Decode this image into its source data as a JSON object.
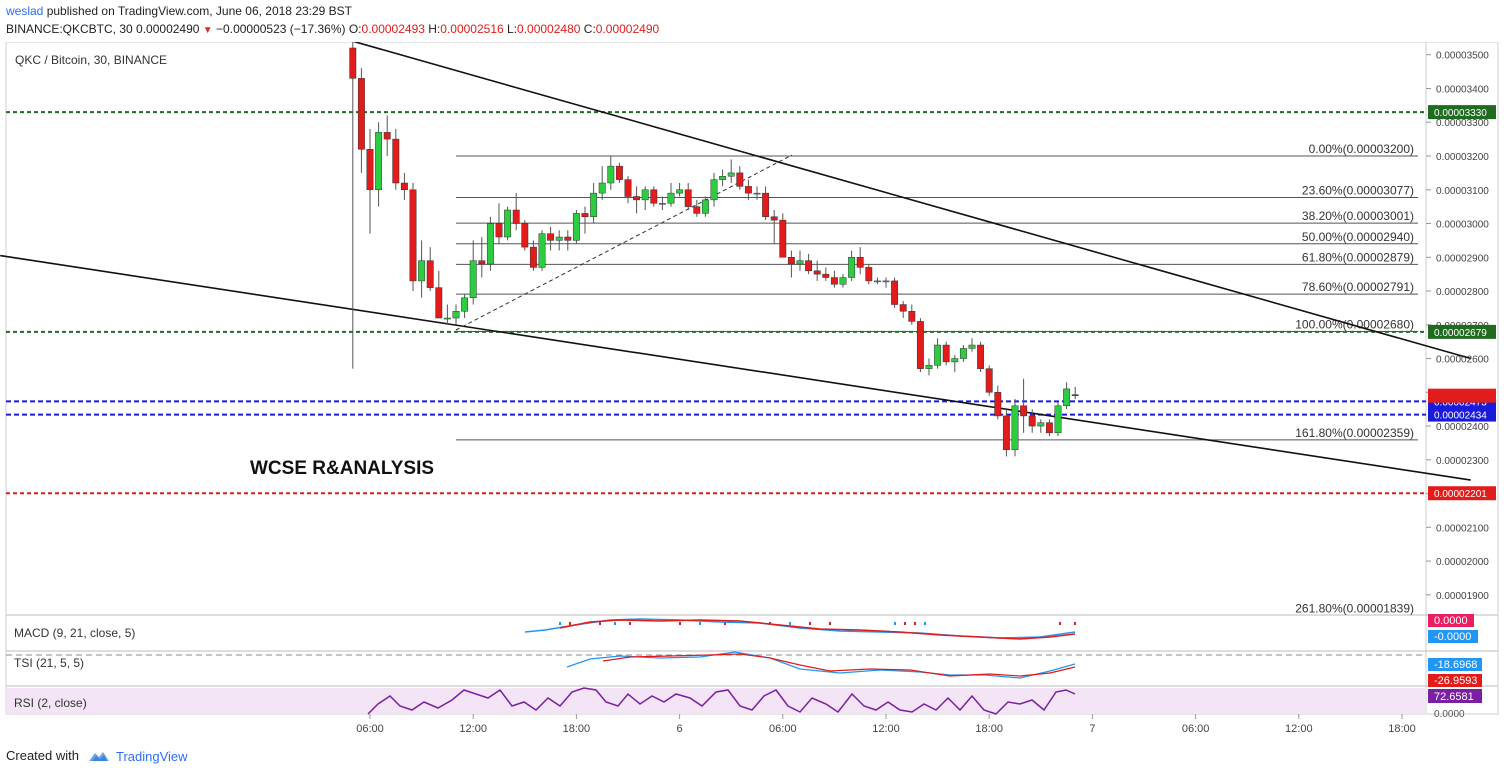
{
  "header": {
    "user": "weslad",
    "published_text": " published on TradingView.com, June 06, 2018 23:29 BST",
    "symbol": "BINANCE:QKCBTC, 30",
    "last": "0.00002490",
    "arrow": "▼",
    "change": "−0.00000523 (−17.36%)",
    "o_label": "O:",
    "o_value": "0.00002493",
    "h_label": "H:",
    "h_value": "0.00002516",
    "l_label": "L:",
    "l_value": "0.00002480",
    "c_label": "C:",
    "c_value": "0.00002490"
  },
  "chart_title": "QKC / Bitcoin, 30, BINANCE",
  "watermark_text": "WCSE R&ANALYSIS",
  "footer": {
    "created_with": "Created with",
    "brand": "TradingView"
  },
  "colors": {
    "up": "#2ecc40",
    "down": "#e21b1b",
    "wick": "#555555",
    "support_green": "#1f6b1f",
    "blue_dashed": "#1a1adb",
    "red_dashed": "#e21b1b",
    "macd": "#2196f3",
    "signal": "#e21b1b",
    "rsi": "#7b1fa2",
    "rsi_band": "#f3e5f5"
  },
  "chart_data": {
    "type": "candlestick",
    "title": "QKC / Bitcoin, 30, BINANCE",
    "y_range": [
      1.83e-05,
      3.55e-05
    ],
    "y_ticks": [
      "0.00001900",
      "0.00002000",
      "0.00002100",
      "0.00002200",
      "0.00002300",
      "0.00002400",
      "0.00002500",
      "0.00002600",
      "0.00002700",
      "0.00002800",
      "0.00002900",
      "0.00003000",
      "0.00003100",
      "0.00003200",
      "0.00003300",
      "0.00003400",
      "0.00003500"
    ],
    "x_ticks": [
      {
        "label": "06:00",
        "t": 0
      },
      {
        "label": "12:00",
        "t": 12
      },
      {
        "label": "18:00",
        "t": 24
      },
      {
        "label": "6",
        "t": 36
      },
      {
        "label": "06:00",
        "t": 48
      },
      {
        "label": "12:00",
        "t": 60
      },
      {
        "label": "18:00",
        "t": 72
      },
      {
        "label": "7",
        "t": 84
      },
      {
        "label": "06:00",
        "t": 96
      },
      {
        "label": "12:00",
        "t": 108
      },
      {
        "label": "18:00",
        "t": 120
      }
    ],
    "candles": [
      {
        "t": -2,
        "o": 3520,
        "h": 3560,
        "l": 2570,
        "c": 3430
      },
      {
        "t": -1,
        "o": 3430,
        "h": 3460,
        "l": 3150,
        "c": 3220
      },
      {
        "t": 0,
        "o": 3220,
        "h": 3280,
        "l": 2970,
        "c": 3100
      },
      {
        "t": 1,
        "o": 3100,
        "h": 3300,
        "l": 3050,
        "c": 3270
      },
      {
        "t": 2,
        "o": 3270,
        "h": 3320,
        "l": 3200,
        "c": 3250
      },
      {
        "t": 3,
        "o": 3250,
        "h": 3280,
        "l": 3100,
        "c": 3120
      },
      {
        "t": 4,
        "o": 3120,
        "h": 3150,
        "l": 3070,
        "c": 3100
      },
      {
        "t": 5,
        "o": 3100,
        "h": 3120,
        "l": 2800,
        "c": 2830
      },
      {
        "t": 6,
        "o": 2830,
        "h": 2950,
        "l": 2780,
        "c": 2890
      },
      {
        "t": 7,
        "o": 2890,
        "h": 2930,
        "l": 2800,
        "c": 2810
      },
      {
        "t": 8,
        "o": 2810,
        "h": 2860,
        "l": 2720,
        "c": 2720
      },
      {
        "t": 9,
        "o": 2720,
        "h": 2760,
        "l": 2700,
        "c": 2720
      },
      {
        "t": 10,
        "o": 2720,
        "h": 2760,
        "l": 2700,
        "c": 2740
      },
      {
        "t": 11,
        "o": 2740,
        "h": 2790,
        "l": 2720,
        "c": 2780
      },
      {
        "t": 12,
        "o": 2780,
        "h": 2950,
        "l": 2760,
        "c": 2890
      },
      {
        "t": 13,
        "o": 2890,
        "h": 2960,
        "l": 2840,
        "c": 2880
      },
      {
        "t": 14,
        "o": 2880,
        "h": 3020,
        "l": 2860,
        "c": 3000
      },
      {
        "t": 15,
        "o": 3000,
        "h": 3060,
        "l": 2940,
        "c": 2960
      },
      {
        "t": 16,
        "o": 2960,
        "h": 3050,
        "l": 2950,
        "c": 3040
      },
      {
        "t": 17,
        "o": 3040,
        "h": 3090,
        "l": 2980,
        "c": 3000
      },
      {
        "t": 18,
        "o": 3000,
        "h": 3010,
        "l": 2920,
        "c": 2930
      },
      {
        "t": 19,
        "o": 2930,
        "h": 2950,
        "l": 2860,
        "c": 2870
      },
      {
        "t": 20,
        "o": 2870,
        "h": 2980,
        "l": 2860,
        "c": 2970
      },
      {
        "t": 21,
        "o": 2970,
        "h": 2990,
        "l": 2920,
        "c": 2950
      },
      {
        "t": 22,
        "o": 2950,
        "h": 2980,
        "l": 2920,
        "c": 2960
      },
      {
        "t": 23,
        "o": 2960,
        "h": 2980,
        "l": 2920,
        "c": 2950
      },
      {
        "t": 24,
        "o": 2950,
        "h": 3040,
        "l": 2940,
        "c": 3030
      },
      {
        "t": 25,
        "o": 3030,
        "h": 3050,
        "l": 2970,
        "c": 3020
      },
      {
        "t": 26,
        "o": 3020,
        "h": 3120,
        "l": 3000,
        "c": 3090
      },
      {
        "t": 27,
        "o": 3090,
        "h": 3170,
        "l": 3070,
        "c": 3120
      },
      {
        "t": 28,
        "o": 3120,
        "h": 3200,
        "l": 3100,
        "c": 3170
      },
      {
        "t": 29,
        "o": 3170,
        "h": 3180,
        "l": 3120,
        "c": 3130
      },
      {
        "t": 30,
        "o": 3130,
        "h": 3140,
        "l": 3060,
        "c": 3080
      },
      {
        "t": 31,
        "o": 3080,
        "h": 3110,
        "l": 3030,
        "c": 3070
      },
      {
        "t": 32,
        "o": 3070,
        "h": 3110,
        "l": 3040,
        "c": 3100
      },
      {
        "t": 33,
        "o": 3100,
        "h": 3110,
        "l": 3050,
        "c": 3060
      },
      {
        "t": 34,
        "o": 3060,
        "h": 3080,
        "l": 3040,
        "c": 3060
      },
      {
        "t": 35,
        "o": 3060,
        "h": 3120,
        "l": 3050,
        "c": 3090
      },
      {
        "t": 36,
        "o": 3090,
        "h": 3120,
        "l": 3080,
        "c": 3100
      },
      {
        "t": 37,
        "o": 3100,
        "h": 3120,
        "l": 3040,
        "c": 3050
      },
      {
        "t": 38,
        "o": 3050,
        "h": 3070,
        "l": 3020,
        "c": 3030
      },
      {
        "t": 39,
        "o": 3030,
        "h": 3080,
        "l": 3020,
        "c": 3070
      },
      {
        "t": 40,
        "o": 3070,
        "h": 3150,
        "l": 3050,
        "c": 3130
      },
      {
        "t": 41,
        "o": 3130,
        "h": 3160,
        "l": 3110,
        "c": 3140
      },
      {
        "t": 42,
        "o": 3140,
        "h": 3190,
        "l": 3120,
        "c": 3150
      },
      {
        "t": 43,
        "o": 3150,
        "h": 3170,
        "l": 3100,
        "c": 3110
      },
      {
        "t": 44,
        "o": 3110,
        "h": 3130,
        "l": 3070,
        "c": 3090
      },
      {
        "t": 45,
        "o": 3090,
        "h": 3110,
        "l": 3070,
        "c": 3090
      },
      {
        "t": 46,
        "o": 3090,
        "h": 3110,
        "l": 3010,
        "c": 3020
      },
      {
        "t": 47,
        "o": 3020,
        "h": 3040,
        "l": 2940,
        "c": 3010
      },
      {
        "t": 48,
        "o": 3010,
        "h": 3030,
        "l": 2900,
        "c": 2900
      },
      {
        "t": 49,
        "o": 2900,
        "h": 2920,
        "l": 2840,
        "c": 2880
      },
      {
        "t": 50,
        "o": 2880,
        "h": 2920,
        "l": 2860,
        "c": 2890
      },
      {
        "t": 51,
        "o": 2890,
        "h": 2910,
        "l": 2850,
        "c": 2860
      },
      {
        "t": 52,
        "o": 2860,
        "h": 2890,
        "l": 2830,
        "c": 2850
      },
      {
        "t": 53,
        "o": 2850,
        "h": 2870,
        "l": 2830,
        "c": 2840
      },
      {
        "t": 54,
        "o": 2840,
        "h": 2860,
        "l": 2810,
        "c": 2820
      },
      {
        "t": 55,
        "o": 2820,
        "h": 2850,
        "l": 2810,
        "c": 2840
      },
      {
        "t": 56,
        "o": 2840,
        "h": 2920,
        "l": 2830,
        "c": 2900
      },
      {
        "t": 57,
        "o": 2900,
        "h": 2930,
        "l": 2850,
        "c": 2870
      },
      {
        "t": 58,
        "o": 2870,
        "h": 2880,
        "l": 2820,
        "c": 2830
      },
      {
        "t": 59,
        "o": 2830,
        "h": 2840,
        "l": 2820,
        "c": 2830
      },
      {
        "t": 60,
        "o": 2830,
        "h": 2840,
        "l": 2810,
        "c": 2830
      },
      {
        "t": 61,
        "o": 2830,
        "h": 2840,
        "l": 2750,
        "c": 2760
      },
      {
        "t": 62,
        "o": 2760,
        "h": 2770,
        "l": 2720,
        "c": 2740
      },
      {
        "t": 63,
        "o": 2740,
        "h": 2760,
        "l": 2700,
        "c": 2710
      },
      {
        "t": 64,
        "o": 2710,
        "h": 2720,
        "l": 2560,
        "c": 2570
      },
      {
        "t": 65,
        "o": 2570,
        "h": 2600,
        "l": 2550,
        "c": 2580
      },
      {
        "t": 66,
        "o": 2580,
        "h": 2660,
        "l": 2570,
        "c": 2640
      },
      {
        "t": 67,
        "o": 2640,
        "h": 2650,
        "l": 2580,
        "c": 2590
      },
      {
        "t": 68,
        "o": 2590,
        "h": 2610,
        "l": 2560,
        "c": 2600
      },
      {
        "t": 69,
        "o": 2600,
        "h": 2640,
        "l": 2590,
        "c": 2630
      },
      {
        "t": 70,
        "o": 2630,
        "h": 2660,
        "l": 2620,
        "c": 2640
      },
      {
        "t": 71,
        "o": 2640,
        "h": 2650,
        "l": 2560,
        "c": 2570
      },
      {
        "t": 72,
        "o": 2570,
        "h": 2580,
        "l": 2490,
        "c": 2500
      },
      {
        "t": 73,
        "o": 2500,
        "h": 2520,
        "l": 2420,
        "c": 2430
      },
      {
        "t": 74,
        "o": 2430,
        "h": 2450,
        "l": 2310,
        "c": 2330
      },
      {
        "t": 75,
        "o": 2330,
        "h": 2480,
        "l": 2310,
        "c": 2460
      },
      {
        "t": 76,
        "o": 2460,
        "h": 2540,
        "l": 2380,
        "c": 2430
      },
      {
        "t": 77,
        "o": 2430,
        "h": 2450,
        "l": 2380,
        "c": 2400
      },
      {
        "t": 78,
        "o": 2400,
        "h": 2420,
        "l": 2380,
        "c": 2410
      },
      {
        "t": 79,
        "o": 2410,
        "h": 2420,
        "l": 2370,
        "c": 2380
      },
      {
        "t": 80,
        "o": 2380,
        "h": 2470,
        "l": 2370,
        "c": 2460
      },
      {
        "t": 81,
        "o": 2460,
        "h": 2530,
        "l": 2450,
        "c": 2510
      },
      {
        "t": 82,
        "o": 2493,
        "h": 2516,
        "l": 2480,
        "c": 2490
      }
    ],
    "fibonacci": [
      {
        "level": "0.00%",
        "price": "0.00003200",
        "v": 3200
      },
      {
        "level": "23.60%",
        "price": "0.00003077",
        "v": 3077
      },
      {
        "level": "38.20%",
        "price": "0.00003001",
        "v": 3001
      },
      {
        "level": "50.00%",
        "price": "0.00002940",
        "v": 2940
      },
      {
        "level": "61.80%",
        "price": "0.00002879",
        "v": 2879
      },
      {
        "level": "78.60%",
        "price": "0.00002791",
        "v": 2791
      },
      {
        "level": "100.00%",
        "price": "0.00002680",
        "v": 2680
      },
      {
        "level": "161.80%",
        "price": "0.00002359",
        "v": 2359
      },
      {
        "level": "261.80%",
        "price": "0.00001839",
        "v": 1839
      }
    ],
    "horizontal_levels": [
      {
        "label": "0.00003330",
        "v": 3330,
        "style": "green"
      },
      {
        "label": "0.00002679",
        "v": 2679,
        "style": "green"
      },
      {
        "label": "0.00002473",
        "v": 2473,
        "style": "blue"
      },
      {
        "label": "0.00002434",
        "v": 2434,
        "style": "blue"
      },
      {
        "label": "0.00002201",
        "v": 2201,
        "style": "red"
      }
    ],
    "trendlines": [
      {
        "from": {
          "t": -2,
          "v": 3540
        },
        "to": {
          "t": 128,
          "v": 2600
        }
      },
      {
        "from": {
          "t": -43,
          "v": 2905
        },
        "to": {
          "t": 128,
          "v": 2240
        }
      }
    ],
    "indicators": {
      "macd": {
        "label": "MACD (9, 21, close, 5)",
        "values": [
          "0.0000",
          "-0.0000"
        ]
      },
      "tsi": {
        "label": "TSI (21, 5, 5)",
        "values": [
          "-18.6968",
          "-26.9593"
        ]
      },
      "rsi": {
        "label": "RSI (2, close)",
        "values": [
          "72.6581",
          "0.0000"
        ]
      }
    }
  }
}
